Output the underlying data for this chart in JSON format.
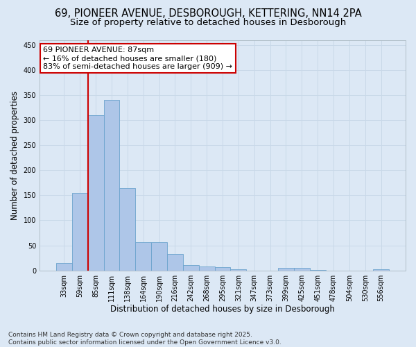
{
  "title_line1": "69, PIONEER AVENUE, DESBOROUGH, KETTERING, NN14 2PA",
  "title_line2": "Size of property relative to detached houses in Desborough",
  "xlabel": "Distribution of detached houses by size in Desborough",
  "ylabel": "Number of detached properties",
  "categories": [
    "33sqm",
    "59sqm",
    "85sqm",
    "111sqm",
    "138sqm",
    "164sqm",
    "190sqm",
    "216sqm",
    "242sqm",
    "268sqm",
    "295sqm",
    "321sqm",
    "347sqm",
    "373sqm",
    "399sqm",
    "425sqm",
    "451sqm",
    "478sqm",
    "504sqm",
    "530sqm",
    "556sqm"
  ],
  "values": [
    15,
    155,
    310,
    340,
    165,
    57,
    57,
    33,
    10,
    8,
    6,
    3,
    0,
    0,
    5,
    5,
    1,
    0,
    0,
    0,
    3
  ],
  "bar_color": "#aec6e8",
  "bar_edge_color": "#6ba3cd",
  "grid_color": "#c8d8e8",
  "bg_color": "#dce8f5",
  "vline_color": "#cc0000",
  "annotation_text": "69 PIONEER AVENUE: 87sqm\n← 16% of detached houses are smaller (180)\n83% of semi-detached houses are larger (909) →",
  "annotation_box_color": "white",
  "annotation_box_edge": "#cc0000",
  "ylim": [
    0,
    460
  ],
  "yticks": [
    0,
    50,
    100,
    150,
    200,
    250,
    300,
    350,
    400,
    450
  ],
  "footnote": "Contains HM Land Registry data © Crown copyright and database right 2025.\nContains public sector information licensed under the Open Government Licence v3.0.",
  "title_fontsize": 10.5,
  "subtitle_fontsize": 9.5,
  "axis_label_fontsize": 8.5,
  "tick_fontsize": 7,
  "annotation_fontsize": 8,
  "footnote_fontsize": 6.5
}
